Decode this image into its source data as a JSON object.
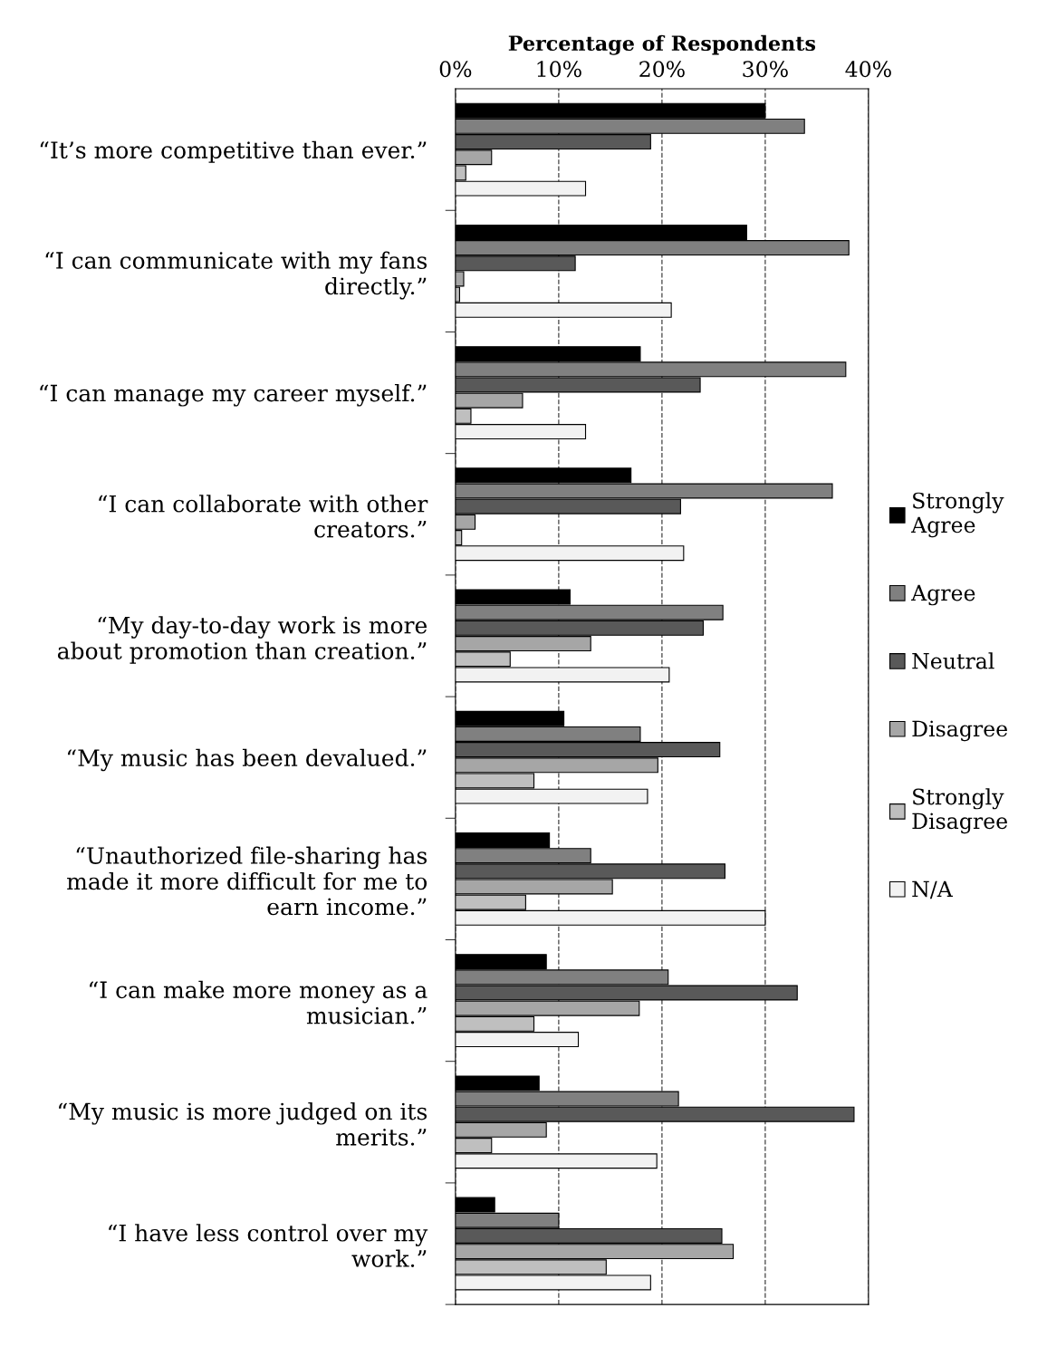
{
  "chart_data": {
    "type": "bar",
    "orientation": "horizontal",
    "xlabel": "Percentage of Respondents",
    "categories": [
      "“It’s more competitive than ever.”",
      "“I can communicate with my fans\ndirectly.”",
      "“I can manage my career myself.”",
      "“I can collaborate with other\ncreators.”",
      "“My day-to-day work is more\nabout promotion than creation.”",
      "“My music has been devalued.”",
      "“Unauthorized file-sharing has\nmade it more difficult for me to\nearn income.”",
      "“I can make more money as a\nmusician.”",
      "“My music is more judged on its\nmerits.”",
      "“I have less control over my\nwork.”"
    ],
    "series": [
      {
        "name": "Strongly\nAgree",
        "color": "#000000",
        "values": [
          30.0,
          28.2,
          17.9,
          17.0,
          11.1,
          10.5,
          9.1,
          8.8,
          8.1,
          3.8
        ]
      },
      {
        "name": "Agree",
        "color": "#808080",
        "values": [
          33.8,
          38.1,
          37.8,
          36.5,
          25.9,
          17.9,
          13.1,
          20.6,
          21.6,
          10.0
        ]
      },
      {
        "name": "Neutral",
        "color": "#595959",
        "values": [
          18.9,
          11.6,
          23.7,
          21.8,
          24.0,
          25.6,
          26.1,
          33.1,
          38.6,
          25.8
        ]
      },
      {
        "name": "Disagree",
        "color": "#a6a6a6",
        "values": [
          3.5,
          0.8,
          6.5,
          1.9,
          13.1,
          19.6,
          15.2,
          17.8,
          8.8,
          26.9
        ]
      },
      {
        "name": "Strongly\nDisagree",
        "color": "#bfbfbf",
        "values": [
          1.0,
          0.4,
          1.5,
          0.6,
          5.3,
          7.6,
          6.8,
          7.6,
          3.5,
          14.6
        ]
      },
      {
        "name": "N/A",
        "color": "#f2f2f2",
        "values": [
          12.6,
          20.9,
          12.6,
          22.1,
          20.7,
          18.6,
          30.0,
          11.9,
          19.5,
          18.9
        ]
      }
    ],
    "xlim": [
      0,
      40
    ],
    "xticks": [
      {
        "value": 0,
        "label": "0%"
      },
      {
        "value": 10,
        "label": "10%"
      },
      {
        "value": 20,
        "label": "20%"
      },
      {
        "value": 30,
        "label": "30%"
      },
      {
        "value": 40,
        "label": "40%"
      }
    ],
    "grid": "x",
    "legend": "right"
  }
}
